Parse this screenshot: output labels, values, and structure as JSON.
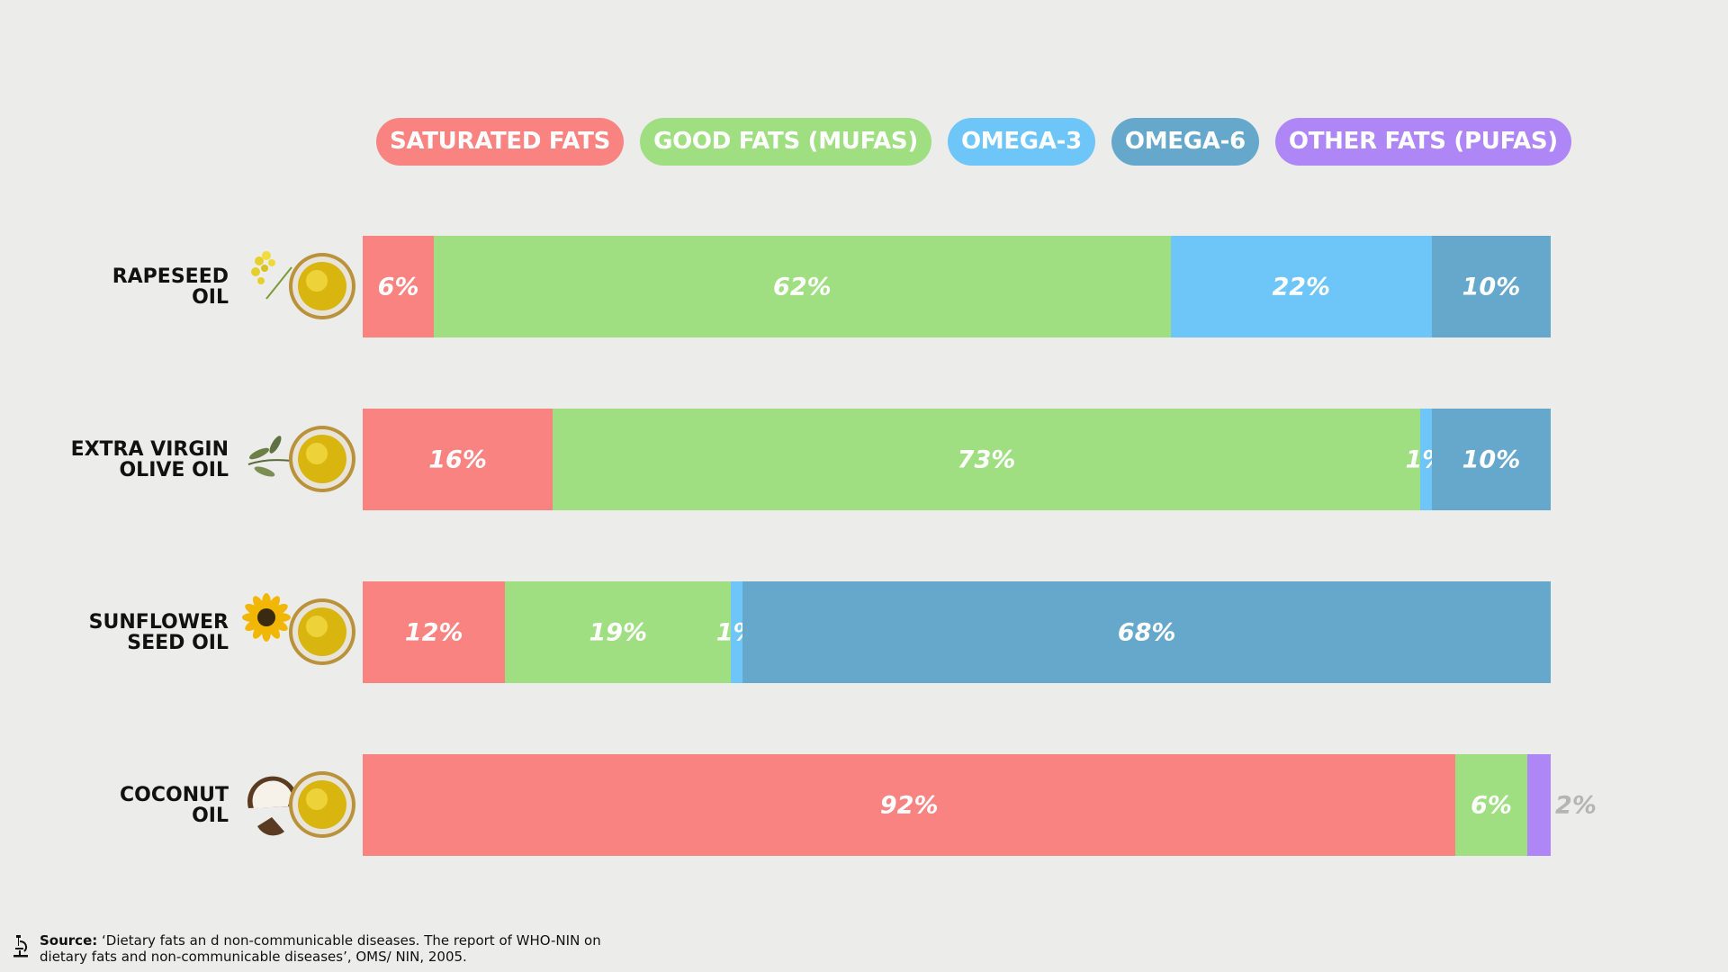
{
  "legend": [
    {
      "label": "SATURATED FATS",
      "color": "#f88380"
    },
    {
      "label": "GOOD FATS (MUFAS)",
      "color": "#9fdf82"
    },
    {
      "label": "OMEGA-3",
      "color": "#6ec5f8"
    },
    {
      "label": "OMEGA-6",
      "color": "#65a8cb"
    },
    {
      "label": "OTHER FATS (PUFAS)",
      "color": "#ae86f5"
    }
  ],
  "chart_data": {
    "type": "bar",
    "orientation": "horizontal",
    "stacked": true,
    "categories": [
      "RAPESEED\nOIL",
      "EXTRA VIRGIN\nOLIVE OIL",
      "SUNFLOWER\nSEED OIL",
      "COCONUT\nOIL"
    ],
    "series": [
      {
        "name": "SATURATED FATS",
        "color": "#f88380",
        "values": [
          6,
          16,
          12,
          92
        ],
        "labels": [
          "6%",
          "16%",
          "12%",
          "92%"
        ]
      },
      {
        "name": "GOOD FATS (MUFAS)",
        "color": "#9fdf82",
        "values": [
          62,
          73,
          19,
          6
        ],
        "labels": [
          "62%",
          "73%",
          "19%",
          "6%"
        ]
      },
      {
        "name": "OMEGA-3",
        "color": "#6ec5f8",
        "values": [
          22,
          1,
          1,
          0
        ],
        "labels": [
          "22%",
          "1%",
          "1%",
          ""
        ]
      },
      {
        "name": "OMEGA-6",
        "color": "#65a8cb",
        "values": [
          10,
          10,
          68,
          0
        ],
        "labels": [
          "10%",
          "10%",
          "68%",
          ""
        ]
      },
      {
        "name": "OTHER FATS (PUFAS)",
        "color": "#ae86f5",
        "values": [
          0,
          0,
          0,
          2
        ],
        "labels": [
          "",
          "",
          "",
          "2%"
        ]
      }
    ],
    "xlim": [
      0,
      100
    ],
    "grid": false,
    "legend_position": "top"
  },
  "icons": [
    "rapeseed-oil-icon",
    "olive-oil-icon",
    "sunflower-oil-icon",
    "coconut-oil-icon"
  ],
  "footer": {
    "source_title": "Source:",
    "source_text": "‘Dietary fats an d non-communicable diseases. The report of WHO-NIN on dietary fats and non-communicable diseases’, OMS/ NIN, 2005.",
    "icon": "microscope-icon"
  }
}
